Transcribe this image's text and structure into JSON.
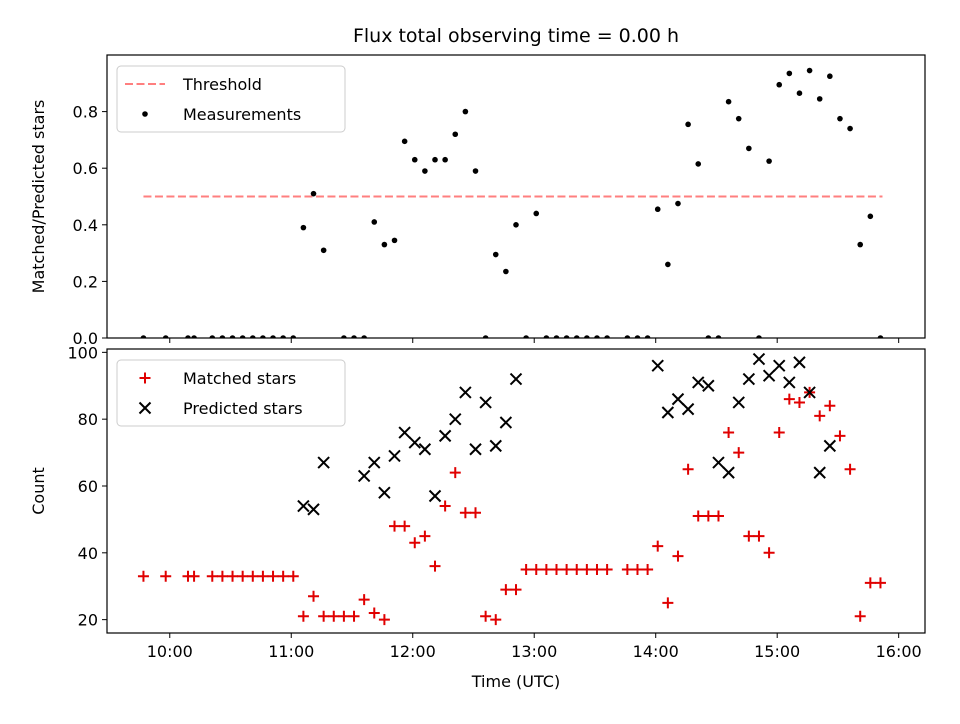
{
  "title": "Flux total observing time = 0.00 h",
  "colors": {
    "threshold": "#ff7f7f",
    "measurements": "#000000",
    "matched": "#e00000",
    "predicted": "#000000"
  },
  "chart_data": [
    {
      "type": "scatter",
      "title": "Flux total observing time = 0.00 h",
      "xlabel": "",
      "ylabel": "Matched/Predicted stars",
      "xlim": [
        "09:29",
        "16:13"
      ],
      "ylim": [
        0,
        1.0
      ],
      "xticks": [
        "10:00",
        "11:00",
        "12:00",
        "13:00",
        "14:00",
        "15:00",
        "16:00"
      ],
      "yticks": [
        "0.0",
        "0.2",
        "0.4",
        "0.6",
        "0.8"
      ],
      "legend": {
        "position": "top-left",
        "entries": [
          "Threshold",
          "Measurements"
        ]
      },
      "series": [
        {
          "name": "Threshold",
          "style": "dashed-line",
          "x": [
            "09:47",
            "15:52"
          ],
          "y": [
            0.5,
            0.5
          ]
        },
        {
          "name": "Measurements",
          "style": "dot",
          "x": [
            "09:47",
            "09:58",
            "10:09",
            "10:12",
            "10:21",
            "10:26",
            "10:31",
            "10:36",
            "10:41",
            "10:46",
            "10:51",
            "10:56",
            "11:01",
            "11:06",
            "11:11",
            "11:16",
            "11:26",
            "11:31",
            "11:36",
            "11:41",
            "11:46",
            "11:51",
            "11:56",
            "12:01",
            "12:06",
            "12:11",
            "12:16",
            "12:21",
            "12:26",
            "12:31",
            "12:36",
            "12:41",
            "12:46",
            "12:51",
            "12:56",
            "13:01",
            "13:06",
            "13:11",
            "13:16",
            "13:21",
            "13:26",
            "13:31",
            "13:36",
            "13:46",
            "13:51",
            "13:56",
            "14:01",
            "14:06",
            "14:11",
            "14:16",
            "14:21",
            "14:26",
            "14:31",
            "14:36",
            "14:41",
            "14:46",
            "14:51",
            "14:56",
            "15:01",
            "15:06",
            "15:11",
            "15:16",
            "15:21",
            "15:26",
            "15:31",
            "15:36",
            "15:41",
            "15:46",
            "15:51"
          ],
          "y": [
            0,
            0,
            0,
            0,
            0,
            0,
            0,
            0,
            0,
            0,
            0,
            0,
            0,
            0.39,
            0.51,
            0.31,
            0,
            0,
            0,
            0.41,
            0.33,
            0.345,
            0.695,
            0.63,
            0.59,
            0.63,
            0.63,
            0.72,
            0.8,
            0.59,
            0,
            0.295,
            0.235,
            0.4,
            0,
            0.44,
            0,
            0,
            0,
            0,
            0,
            0,
            0,
            0,
            0,
            0,
            0.455,
            0.26,
            0.475,
            0.755,
            0.615,
            0,
            0,
            0.835,
            0.775,
            0.67,
            0,
            0.625,
            0.895,
            0.935,
            0.865,
            0.945,
            0.845,
            0.925,
            0.775,
            0.74,
            0.33,
            0.43,
            0
          ]
        }
      ]
    },
    {
      "type": "scatter",
      "xlabel": "Time (UTC)",
      "ylabel": "Count",
      "xlim": [
        "09:29",
        "16:13"
      ],
      "ylim": [
        16,
        101
      ],
      "xticks": [
        "10:00",
        "11:00",
        "12:00",
        "13:00",
        "14:00",
        "15:00",
        "16:00"
      ],
      "yticks": [
        "20",
        "40",
        "60",
        "80",
        "100"
      ],
      "legend": {
        "position": "top-left",
        "entries": [
          "Matched stars",
          "Predicted stars"
        ]
      },
      "series": [
        {
          "name": "Matched stars",
          "marker": "plus",
          "x": [
            "09:47",
            "09:58",
            "10:09",
            "10:12",
            "10:21",
            "10:26",
            "10:31",
            "10:36",
            "10:41",
            "10:46",
            "10:51",
            "10:56",
            "11:01",
            "11:06",
            "11:11",
            "11:16",
            "11:21",
            "11:26",
            "11:31",
            "11:36",
            "11:41",
            "11:46",
            "11:51",
            "11:56",
            "12:01",
            "12:06",
            "12:11",
            "12:16",
            "12:21",
            "12:26",
            "12:31",
            "12:36",
            "12:41",
            "12:46",
            "12:51",
            "12:56",
            "13:01",
            "13:06",
            "13:11",
            "13:16",
            "13:21",
            "13:26",
            "13:31",
            "13:36",
            "13:46",
            "13:51",
            "13:56",
            "14:01",
            "14:06",
            "14:11",
            "14:16",
            "14:21",
            "14:26",
            "14:31",
            "14:36",
            "14:41",
            "14:46",
            "14:51",
            "14:56",
            "15:01",
            "15:06",
            "15:11",
            "15:16",
            "15:21",
            "15:26",
            "15:31",
            "15:36",
            "15:41",
            "15:46",
            "15:51"
          ],
          "y": [
            33,
            33,
            33,
            33,
            33,
            33,
            33,
            33,
            33,
            33,
            33,
            33,
            33,
            21,
            27,
            21,
            21,
            21,
            21,
            26,
            22,
            20,
            48,
            48,
            43,
            45,
            36,
            54,
            64,
            52,
            52,
            21,
            20,
            29,
            29,
            35,
            35,
            35,
            35,
            35,
            35,
            35,
            35,
            35,
            35,
            35,
            35,
            42,
            25,
            39,
            65,
            51,
            51,
            51,
            76,
            70,
            45,
            45,
            40,
            76,
            86,
            85,
            88,
            81,
            84,
            75,
            65,
            21,
            31,
            31
          ]
        },
        {
          "name": "Predicted stars",
          "marker": "x",
          "x": [
            "11:06",
            "11:11",
            "11:16",
            "11:36",
            "11:41",
            "11:46",
            "11:51",
            "11:56",
            "12:01",
            "12:06",
            "12:11",
            "12:16",
            "12:21",
            "12:26",
            "12:31",
            "12:36",
            "12:41",
            "12:46",
            "12:51",
            "14:01",
            "14:06",
            "14:11",
            "14:16",
            "14:21",
            "14:26",
            "14:31",
            "14:36",
            "14:41",
            "14:46",
            "14:51",
            "14:56",
            "15:01",
            "15:06",
            "15:11",
            "15:16",
            "15:21",
            "15:26",
            "15:31",
            "15:36",
            "15:41",
            "15:46"
          ],
          "y": [
            54,
            53,
            67,
            63,
            67,
            58,
            69,
            76,
            73,
            71,
            57,
            75,
            80,
            88,
            71,
            85,
            72,
            79,
            92,
            96,
            82,
            86,
            83,
            91,
            90,
            67,
            64,
            85,
            92,
            98,
            93,
            96,
            91,
            97,
            88,
            64,
            72,
            null,
            null,
            null,
            null
          ]
        }
      ]
    }
  ]
}
